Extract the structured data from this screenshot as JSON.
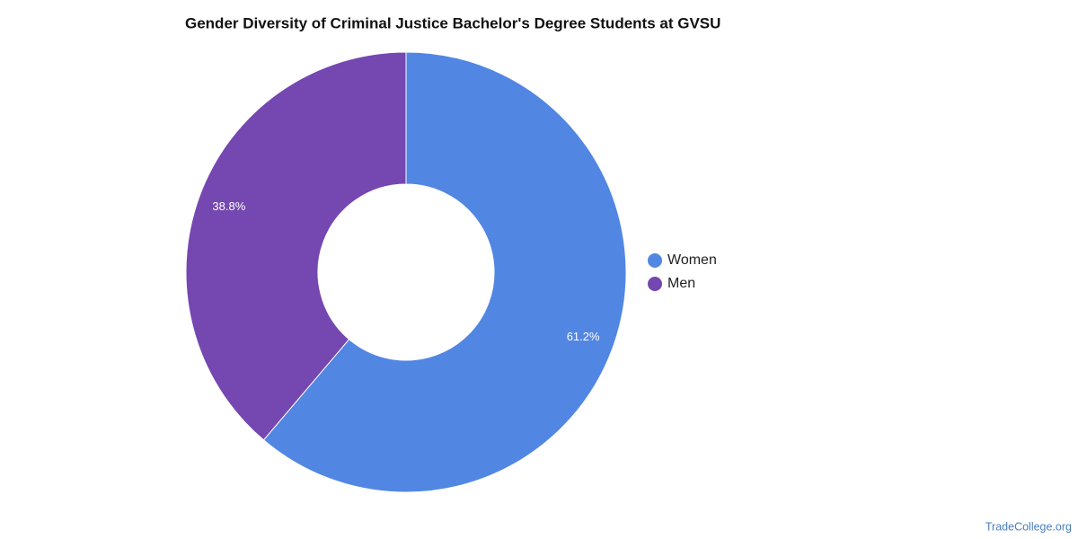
{
  "chart_data": {
    "type": "pie",
    "title": "Gender Diversity of Criminal Justice Bachelor's Degree Students at GVSU",
    "categories": [
      "Women",
      "Men"
    ],
    "values": [
      61.2,
      38.8
    ],
    "value_labels": [
      "61.2%",
      "38.8%"
    ],
    "colors": [
      "#5286e3",
      "#7547b0"
    ],
    "legend": "right",
    "source": "TradeCollege.org"
  }
}
